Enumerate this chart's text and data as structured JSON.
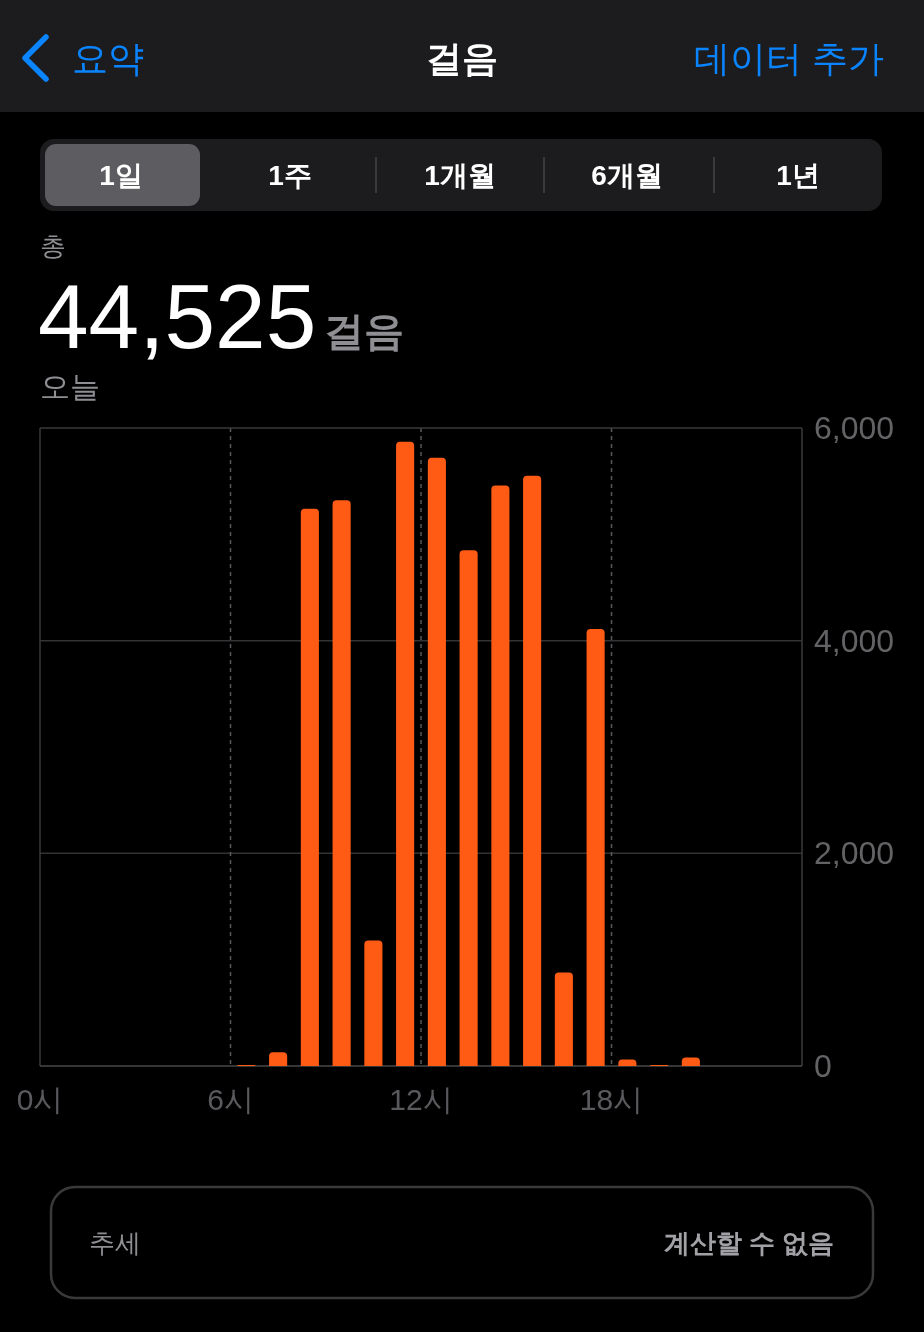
{
  "chart_data": {
    "type": "bar",
    "title": "걸음",
    "annotations": [
      "요약",
      "데이터 추가",
      "1일",
      "1주",
      "1개월",
      "6개월",
      "1년",
      "총",
      "44,525",
      "걸음",
      "오늘",
      "추세",
      "계산할 수 없음"
    ],
    "x": [
      6.5,
      7.5,
      8.5,
      9.5,
      10.5,
      11.5,
      12.5,
      13.5,
      14.5,
      15.5,
      16.5,
      17.5,
      18.5,
      19.5,
      20.5
    ],
    "values": [
      10,
      130,
      5240,
      5320,
      1180,
      5870,
      5720,
      4850,
      5460,
      5550,
      880,
      4110,
      60,
      10,
      80
    ],
    "color": "#ff5b14",
    "xlim": [
      0,
      24
    ],
    "xticks": [
      {
        "value": 0,
        "label": "0시"
      },
      {
        "value": 6,
        "label": "6시"
      },
      {
        "value": 12,
        "label": "12시"
      },
      {
        "value": 18,
        "label": "18시"
      }
    ],
    "ylim": [
      0,
      6000
    ],
    "yticks": [
      0,
      {
        "value": 2000,
        "label": "2,000"
      },
      {
        "value": 4000,
        "label": "4,000"
      },
      {
        "value": 6000,
        "label": "6,000"
      }
    ],
    "grid": true
  }
}
